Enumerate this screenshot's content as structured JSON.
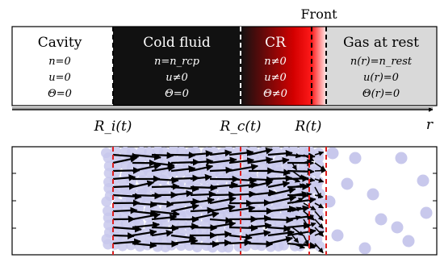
{
  "front_label": "Front",
  "regions": [
    {
      "title": "Cavity",
      "lines": [
        "n=0",
        "u=0",
        "Θ=0"
      ],
      "fill": "#ffffff",
      "text_color": "#000000"
    },
    {
      "title": "Cold fluid",
      "lines": [
        "n=n_rcp",
        "u≠0",
        "Θ=0"
      ],
      "fill": "#111111",
      "text_color": "#ffffff"
    },
    {
      "title": "CR",
      "lines": [
        "n≠0",
        "u≠0",
        "Θ≠0"
      ],
      "fill": "#cc0000",
      "text_color": "#ffffff"
    },
    {
      "title": "Gas at rest",
      "lines": [
        "n(r)=n_rest",
        "u(r)=0",
        "Θ(r)=0"
      ],
      "fill": "#d9d9d9",
      "text_color": "#000000"
    }
  ],
  "axis": {
    "ticks": [
      "R_i(t)",
      "R_c(t)",
      "R(t)"
    ],
    "axis_label": "r"
  },
  "colors": {
    "particle": "#c8c8ec",
    "arrow": "#000000",
    "boundary": "#e02020",
    "cr_gradient_start": "#111111",
    "cr_gradient_end": "#ff1a1a"
  }
}
